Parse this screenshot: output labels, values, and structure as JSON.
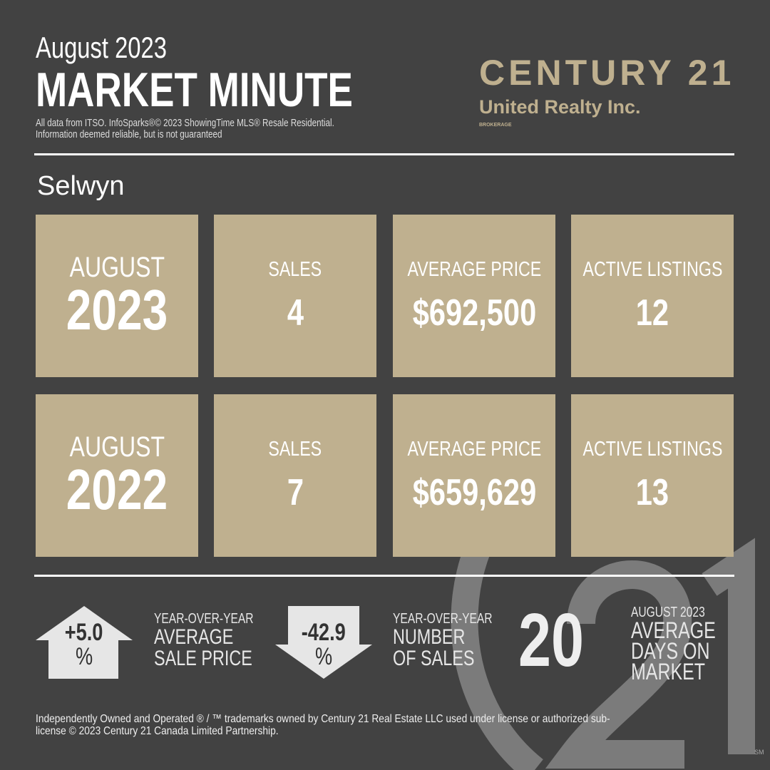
{
  "header": {
    "subtitle": "August 2023",
    "title": "MARKET MINUTE",
    "disclaimer_line1": "All data from ITSO. InfoSparks®© 2023 ShowingTime MLS® Resale  Residential.",
    "disclaimer_line2": "Information deemed reliable, but is not guaranteed"
  },
  "brand": {
    "name": "CENTURY 21",
    "office": "United Realty Inc.",
    "tag": "BROKERAGE",
    "watermark": "21",
    "sm": "SM",
    "color": "#bfb08f"
  },
  "area": "Selwyn",
  "rows": [
    {
      "month": "AUGUST",
      "year": "2023",
      "sales_label": "SALES",
      "sales": "4",
      "price_label": "AVERAGE PRICE",
      "price": "$692,500",
      "listings_label": "ACTIVE LISTINGS",
      "listings": "12"
    },
    {
      "month": "AUGUST",
      "year": "2022",
      "sales_label": "SALES",
      "sales": "7",
      "price_label": "AVERAGE PRICE",
      "price": "$659,629",
      "listings_label": "ACTIVE LISTINGS",
      "listings": "13"
    }
  ],
  "stats": {
    "price_change": {
      "value": "+5.0",
      "unit": "%",
      "direction": "up",
      "l1": "YEAR-OVER-YEAR",
      "l2": "AVERAGE",
      "l3": "SALE PRICE"
    },
    "sales_change": {
      "value": "-42.9",
      "unit": "%",
      "direction": "down",
      "l1": "YEAR-OVER-YEAR",
      "l2": "NUMBER",
      "l3": "OF SALES"
    },
    "dom": {
      "value": "20",
      "l1": "AUGUST 2023",
      "l2": "AVERAGE",
      "l3": "DAYS ON",
      "l4": "MARKET"
    }
  },
  "footer": {
    "line1": "Independently Owned and Operated ® / ™ trademarks owned by Century 21 Real Estate LLC used under license or authorized sub-",
    "line2": "license © 2023 Century 21 Canada Limited Partnership."
  }
}
